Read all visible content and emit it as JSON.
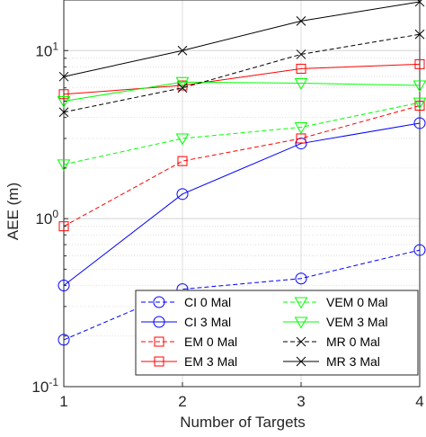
{
  "chart_data": {
    "type": "line",
    "title": "",
    "xlabel": "Number of Targets",
    "ylabel": "AEE (m)",
    "x": [
      1,
      2,
      3,
      4
    ],
    "x_ticks": [
      "1",
      "2",
      "3",
      "4"
    ],
    "xlim": [
      1,
      4
    ],
    "ylim": [
      0.1,
      20
    ],
    "y_scale": "log",
    "y_tick_values": [
      0.1,
      1,
      10
    ],
    "y_tick_labels": [
      {
        "base": "10",
        "exp": "-1"
      },
      {
        "base": "10",
        "exp": "0"
      },
      {
        "base": "10",
        "exp": "1"
      }
    ],
    "grid": true,
    "legend": {
      "position": "bottom-right",
      "columns": 2
    },
    "series": [
      {
        "name": "CI 0 Mal",
        "values": [
          0.19,
          0.38,
          0.44,
          0.65
        ],
        "color": "#0000ff",
        "dash": "dashed",
        "marker": "circle"
      },
      {
        "name": "CI 3 Mal",
        "values": [
          0.4,
          1.4,
          2.8,
          3.7
        ],
        "color": "#0000ff",
        "dash": "solid",
        "marker": "circle"
      },
      {
        "name": "EM 0 Mal",
        "values": [
          0.9,
          2.2,
          3.0,
          4.7
        ],
        "color": "#ff0000",
        "dash": "dashed",
        "marker": "square"
      },
      {
        "name": "EM 3 Mal",
        "values": [
          5.5,
          6.2,
          7.8,
          8.3
        ],
        "color": "#ff0000",
        "dash": "solid",
        "marker": "square"
      },
      {
        "name": "VEM 0 Mal",
        "values": [
          2.1,
          3.0,
          3.5,
          4.9
        ],
        "color": "#00ff00",
        "dash": "dashed",
        "marker": "triangle-down"
      },
      {
        "name": "VEM 3 Mal",
        "values": [
          5.0,
          6.5,
          6.4,
          6.2
        ],
        "color": "#00ff00",
        "dash": "solid",
        "marker": "triangle-down"
      },
      {
        "name": "MR 0 Mal",
        "values": [
          4.3,
          6.0,
          9.5,
          12.5
        ],
        "color": "#000000",
        "dash": "dashed",
        "marker": "x"
      },
      {
        "name": "MR 3 Mal",
        "values": [
          7.0,
          10.0,
          15.0,
          19.5
        ],
        "color": "#000000",
        "dash": "solid",
        "marker": "x"
      }
    ]
  }
}
